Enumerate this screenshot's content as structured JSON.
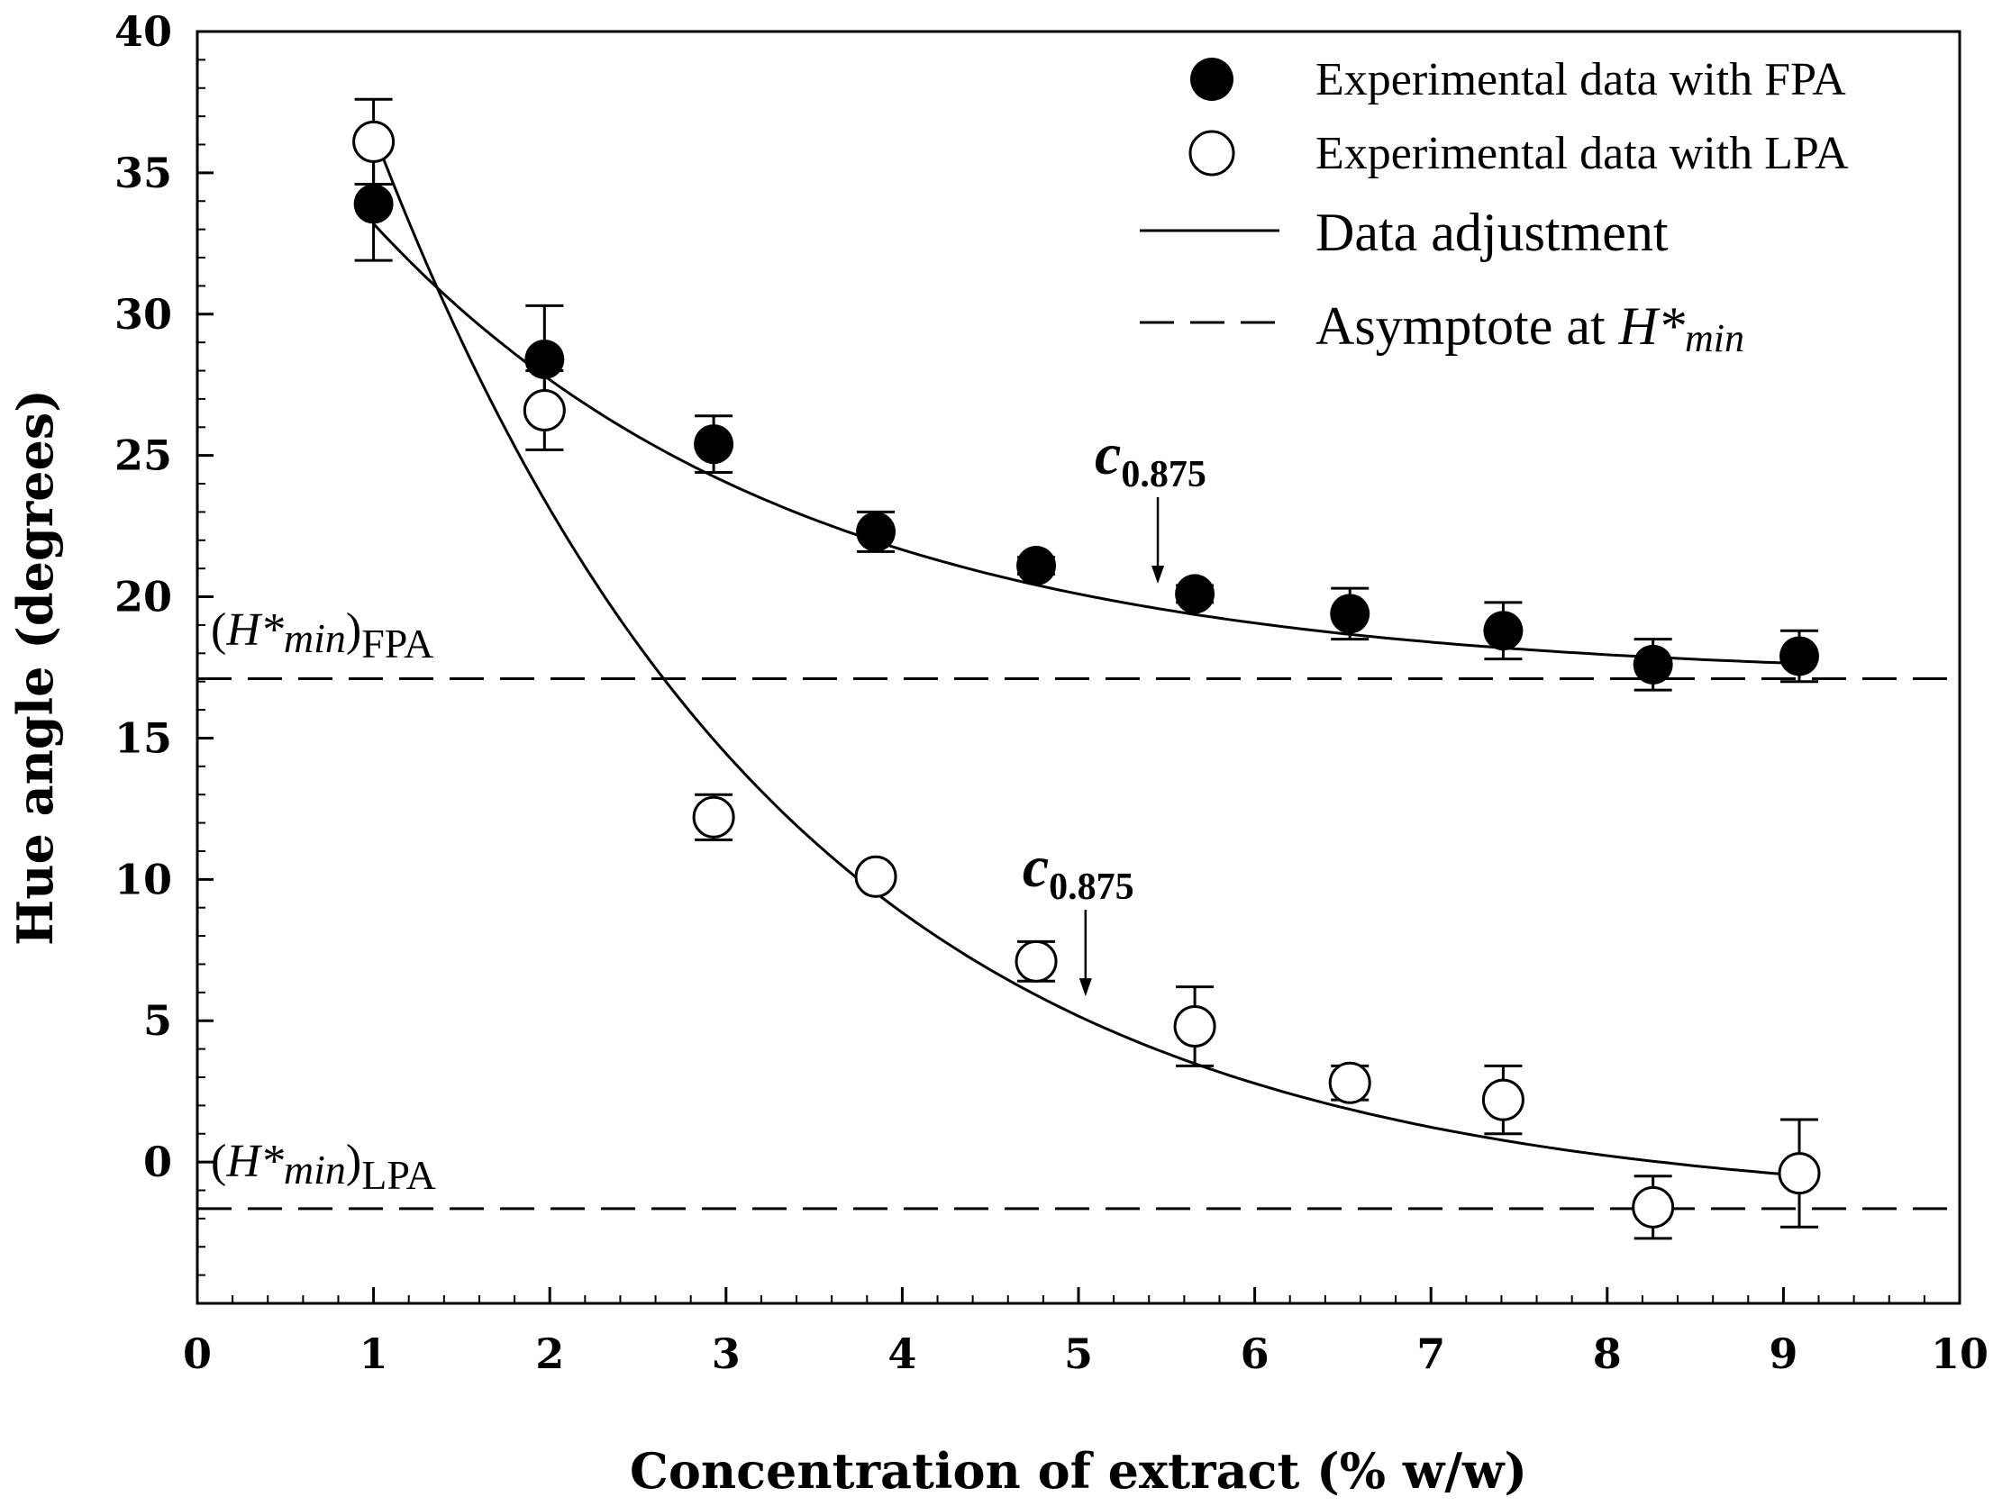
{
  "chart_data": {
    "type": "scatter",
    "xlabel": "Concentration of extract (% w/w)",
    "ylabel": "Hue angle (degrees)",
    "xlim": [
      0,
      10
    ],
    "ylim": [
      -5,
      40
    ],
    "x_ticks": [
      0,
      1,
      2,
      3,
      4,
      5,
      6,
      7,
      8,
      9,
      10
    ],
    "y_ticks": [
      0,
      5,
      10,
      15,
      20,
      25,
      30,
      35,
      40
    ],
    "x_tick_labels": [
      "0",
      "1",
      "2",
      "3",
      "4",
      "5",
      "6",
      "7",
      "8",
      "9",
      "10"
    ],
    "y_tick_labels": [
      "0",
      "5",
      "10",
      "15",
      "20",
      "25",
      "30",
      "35",
      "40"
    ],
    "legend_position": "top-right",
    "legend": [
      {
        "label": "Experimental data with FPA",
        "marker": "filled-circle"
      },
      {
        "label": "Experimental data with LPA",
        "marker": "open-circle"
      },
      {
        "label": "Data adjustment",
        "marker": "solid-line"
      },
      {
        "label_prefix": "Asymptote at ",
        "label_var": "H*",
        "label_sub": "min",
        "marker": "dashed-line"
      }
    ],
    "series": [
      {
        "name": "Experimental data with FPA",
        "marker": "filled",
        "points": [
          {
            "x": 1.0,
            "y": 33.9,
            "err": 2.0
          },
          {
            "x": 1.97,
            "y": 28.4,
            "err": 1.9
          },
          {
            "x": 2.93,
            "y": 25.4,
            "err": 1.0
          },
          {
            "x": 3.85,
            "y": 22.3,
            "err": 0.7
          },
          {
            "x": 4.76,
            "y": 21.1,
            "err": 0.3
          },
          {
            "x": 5.66,
            "y": 20.1,
            "err": 0.3
          },
          {
            "x": 6.54,
            "y": 19.4,
            "err": 0.9
          },
          {
            "x": 7.41,
            "y": 18.8,
            "err": 1.0
          },
          {
            "x": 8.26,
            "y": 17.6,
            "err": 0.9
          },
          {
            "x": 9.09,
            "y": 17.9,
            "err": 0.9
          }
        ],
        "fit": {
          "asymptote": 17.1,
          "amplitude": 24.5,
          "rate": 0.42,
          "x_range": [
            1.0,
            9.09
          ]
        }
      },
      {
        "name": "Experimental data with LPA",
        "marker": "open",
        "points": [
          {
            "x": 1.0,
            "y": 36.1,
            "err": 1.5
          },
          {
            "x": 1.97,
            "y": 26.6,
            "err": 1.4
          },
          {
            "x": 2.93,
            "y": 12.2,
            "err": 0.8
          },
          {
            "x": 3.85,
            "y": 10.1,
            "err": 0.0
          },
          {
            "x": 4.76,
            "y": 7.1,
            "err": 0.7
          },
          {
            "x": 5.66,
            "y": 4.8,
            "err": 1.4
          },
          {
            "x": 6.54,
            "y": 2.8,
            "err": 0.6
          },
          {
            "x": 7.41,
            "y": 2.2,
            "err": 1.2
          },
          {
            "x": 8.26,
            "y": -1.6,
            "err": 1.1
          },
          {
            "x": 9.09,
            "y": -0.4,
            "err": 1.9
          }
        ],
        "fit": {
          "asymptote": -1.65,
          "amplitude": 58.5,
          "rate": 0.43,
          "x_range": [
            1.0,
            9.09
          ]
        }
      }
    ],
    "asymptotes": [
      {
        "name": "FPA",
        "y": 17.1,
        "label_var": "H*",
        "label_sub": "min",
        "label_group": "FPA"
      },
      {
        "name": "LPA",
        "y": -1.65,
        "label_var": "H*",
        "label_sub": "min",
        "label_group": "LPA"
      }
    ],
    "annotations": [
      {
        "label_main": "c",
        "label_sub": "0.875",
        "series": "FPA",
        "x": 5.45,
        "y": 20.4
      },
      {
        "label_main": "c",
        "label_sub": "0.875",
        "series": "LPA",
        "x": 5.04,
        "y": 5.8
      }
    ]
  }
}
